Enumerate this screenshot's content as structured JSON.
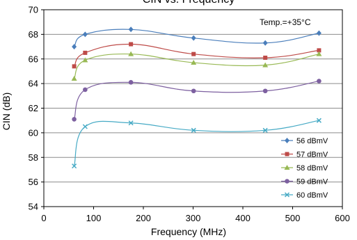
{
  "chart_data": {
    "type": "line",
    "title": "CIN vs. Frequency",
    "xlabel": "Frequency (MHz)",
    "ylabel": "CIN (dB)",
    "xlim": [
      0,
      600
    ],
    "ylim": [
      54,
      70
    ],
    "x_ticks": [
      0,
      100,
      200,
      300,
      400,
      500,
      600
    ],
    "y_ticks": [
      54,
      56,
      58,
      60,
      62,
      64,
      66,
      68,
      70
    ],
    "grid": "horizontal",
    "annotation": "Temp.=+35°C",
    "legend_position": "bottom-right",
    "x": [
      61,
      83,
      175,
      301,
      445,
      553
    ],
    "series": [
      {
        "name": "56 dBmV",
        "color": "#4a7ebb",
        "marker": "diamond",
        "values": [
          67.0,
          68.0,
          68.4,
          67.7,
          67.3,
          68.1
        ]
      },
      {
        "name": "57 dBmV",
        "color": "#be4b48",
        "marker": "square",
        "values": [
          65.4,
          66.5,
          67.2,
          66.4,
          66.1,
          66.7
        ]
      },
      {
        "name": "58 dBmV",
        "color": "#98b954",
        "marker": "triangle",
        "values": [
          64.4,
          65.9,
          66.4,
          65.7,
          65.5,
          66.4
        ]
      },
      {
        "name": "59 dBmV",
        "color": "#7d60a0",
        "marker": "circle",
        "values": [
          61.1,
          63.5,
          64.1,
          63.4,
          63.4,
          64.2
        ]
      },
      {
        "name": "60 dBmV",
        "color": "#46aac5",
        "marker": "x",
        "values": [
          57.3,
          60.5,
          60.8,
          60.2,
          60.2,
          61.0
        ]
      }
    ]
  }
}
